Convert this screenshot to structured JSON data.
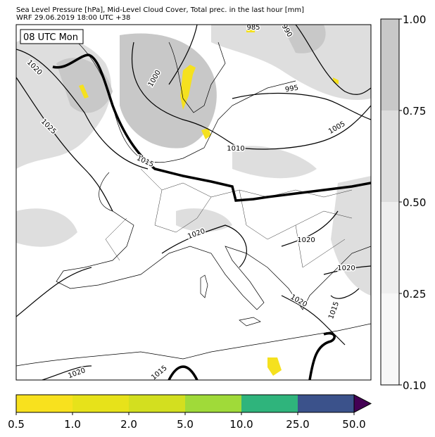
{
  "header": {
    "title": "Sea Level Pressure [hPa], Mid-Level Cloud Cover, Total prec. in the last hour [mm]",
    "subtitle": "WRF 29.06.2019 18:00 UTC +38"
  },
  "map": {
    "time_label": "08 UTC Mon",
    "contour_labels": [
      1020,
      1025,
      1000,
      985,
      990,
      995,
      1005,
      1010,
      1015,
      1020,
      1020,
      1020,
      1020,
      1015,
      1020,
      1015
    ]
  },
  "colorbar_cloud": {
    "ticks": [
      {
        "value": 0.1,
        "label": "0.10"
      },
      {
        "value": 0.25,
        "label": "0.25"
      },
      {
        "value": 0.5,
        "label": "0.50"
      },
      {
        "value": 0.75,
        "label": "0.75"
      },
      {
        "value": 1.0,
        "label": "1.00"
      }
    ],
    "colors": [
      "#f7f7f7",
      "#eeeeee",
      "#dddddd",
      "#c8c8c8"
    ]
  },
  "colorbar_precip": {
    "ticks": [
      0.5,
      {
        "value": 1.0,
        "label": "1.0"
      },
      {
        "value": 2.0,
        "label": "2.0"
      },
      {
        "value": 5.0,
        "label": "5.0"
      },
      {
        "value": 10.0,
        "label": "10.0"
      },
      {
        "value": 25.0,
        "label": "25.0"
      },
      {
        "value": 50.0,
        "label": "50.0"
      }
    ],
    "colors": [
      "#f8e11e",
      "#e7e21a",
      "#d3df1f",
      "#a0da39",
      "#2fb47c",
      "#3b528b"
    ],
    "extend_color": "#440154"
  }
}
